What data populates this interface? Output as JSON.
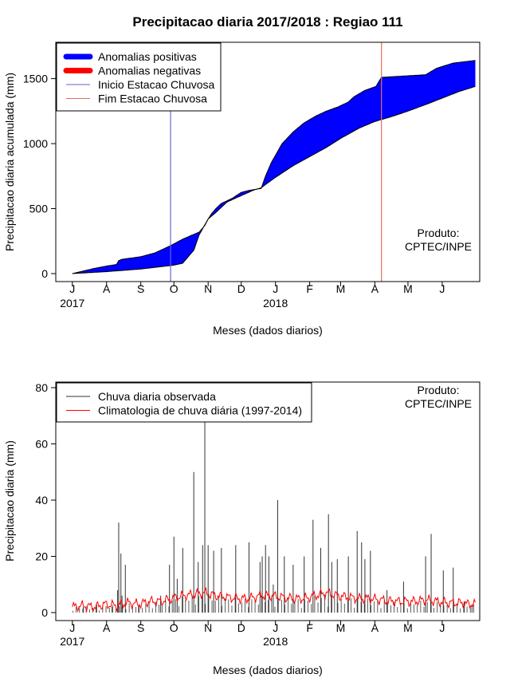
{
  "title": "Precipitacao diaria 2017/2018 : Regiao 111",
  "colors": {
    "positive": "#0000ff",
    "negative": "#ff0000",
    "start_line": "#6666cc",
    "end_line": "#e07060",
    "observed": "#333333",
    "climatology": "#ff0000"
  },
  "chart_data": [
    {
      "type": "area",
      "name": "accumulated",
      "xlabel": "Meses (dados diarios)",
      "ylabel": "Precipitacao diaria acumulada (mm)",
      "ylim": [
        0,
        1700
      ],
      "y_ticks": [
        0,
        500,
        1000,
        1500
      ],
      "x_ticks": [
        "J",
        "A",
        "S",
        "O",
        "N",
        "D",
        "J",
        "F",
        "M",
        "A",
        "M",
        "J"
      ],
      "x_tick_days": [
        0,
        31,
        62,
        92,
        123,
        153,
        184,
        215,
        243,
        274,
        304,
        335
      ],
      "x_range_days": [
        -15,
        369
      ],
      "years": [
        {
          "label": "2017",
          "day": 0
        },
        {
          "label": "2018",
          "day": 184
        }
      ],
      "season_start_day": 89,
      "season_end_day": 280,
      "observed_cum": {
        "days": [
          0,
          20,
          31,
          40,
          42,
          45,
          62,
          75,
          89,
          100,
          115,
          120,
          123,
          126,
          130,
          135,
          145,
          153,
          160,
          171,
          175,
          180,
          190,
          200,
          210,
          220,
          230,
          240,
          250,
          255,
          265,
          275,
          280,
          300,
          320,
          330,
          345,
          365
        ],
        "values": [
          0,
          40,
          58,
          70,
          100,
          110,
          130,
          160,
          215,
          265,
          320,
          370,
          420,
          460,
          500,
          540,
          580,
          625,
          640,
          655,
          750,
          850,
          1000,
          1090,
          1160,
          1210,
          1250,
          1280,
          1320,
          1360,
          1410,
          1440,
          1510,
          1520,
          1530,
          1580,
          1620,
          1640
        ]
      },
      "climatology_cum": {
        "days": [
          0,
          31,
          62,
          92,
          100,
          110,
          115,
          123,
          130,
          140,
          153,
          165,
          171,
          184,
          200,
          215,
          230,
          243,
          260,
          274,
          290,
          304,
          320,
          335,
          350,
          365
        ],
        "values": [
          0,
          15,
          35,
          65,
          80,
          180,
          300,
          420,
          470,
          550,
          600,
          645,
          660,
          740,
          830,
          900,
          970,
          1040,
          1120,
          1170,
          1210,
          1250,
          1300,
          1350,
          1400,
          1440
        ]
      },
      "legend": [
        {
          "label": "Anomalias positivas",
          "kind": "thick",
          "color_key": "positive"
        },
        {
          "label": "Anomalias negativas",
          "kind": "thick",
          "color_key": "negative"
        },
        {
          "label": "Inicio Estacao Chuvosa",
          "kind": "line",
          "color_key": "start_line"
        },
        {
          "label": "Fim Estacao Chuvosa",
          "kind": "line",
          "color_key": "end_line"
        }
      ],
      "annotation": [
        "Produto:",
        "CPTEC/INPE"
      ]
    },
    {
      "type": "bar",
      "name": "daily",
      "xlabel": "Meses (dados diarios)",
      "ylabel": "Precipitacao diaria (mm)",
      "ylim": [
        0,
        80
      ],
      "y_ticks": [
        0,
        20,
        40,
        60,
        80
      ],
      "x_ticks": [
        "J",
        "A",
        "S",
        "O",
        "N",
        "D",
        "J",
        "F",
        "M",
        "A",
        "M",
        "J"
      ],
      "x_tick_days": [
        0,
        31,
        62,
        92,
        123,
        153,
        184,
        215,
        243,
        274,
        304,
        335
      ],
      "x_range_days": [
        -15,
        369
      ],
      "years": [
        {
          "label": "2017",
          "day": 0
        },
        {
          "label": "2018",
          "day": 184
        }
      ],
      "observed_spikes": {
        "days": [
          10,
          22,
          36,
          41,
          42,
          44,
          45,
          48,
          60,
          80,
          88,
          92,
          95,
          100,
          110,
          114,
          118,
          120,
          123,
          128,
          135,
          148,
          160,
          170,
          172,
          175,
          178,
          182,
          186,
          192,
          200,
          210,
          218,
          225,
          232,
          235,
          240,
          250,
          258,
          262,
          265,
          270,
          285,
          300,
          320,
          325,
          336,
          345,
          355,
          362
        ],
        "values": [
          2,
          3,
          2,
          8,
          32,
          21,
          6,
          17,
          2,
          6,
          17,
          27,
          12,
          23,
          50,
          18,
          24,
          68,
          24,
          22,
          23,
          24,
          25,
          18,
          20,
          24,
          20,
          10,
          40,
          20,
          17,
          20,
          33,
          23,
          35,
          18,
          19,
          20,
          29,
          25,
          19,
          22,
          8,
          11,
          20,
          28,
          15,
          16,
          4,
          3
        ]
      },
      "climatology": {
        "days": [
          0,
          10,
          20,
          30,
          40,
          50,
          60,
          70,
          80,
          90,
          100,
          110,
          120,
          130,
          140,
          150,
          160,
          170,
          180,
          190,
          200,
          210,
          220,
          230,
          240,
          250,
          260,
          270,
          280,
          290,
          300,
          310,
          320,
          330,
          340,
          350,
          360,
          365
        ],
        "values": [
          2,
          2.5,
          2,
          3,
          2.5,
          3.5,
          3,
          4,
          4,
          5,
          6,
          6.5,
          7,
          6,
          5.5,
          5,
          5,
          6,
          6,
          5.5,
          5,
          5,
          6,
          7,
          6,
          5.5,
          5,
          5,
          4.5,
          4,
          4,
          4,
          4.5,
          4,
          3.5,
          3.5,
          3,
          3
        ]
      },
      "legend": [
        {
          "label": "Chuva diaria observada",
          "kind": "line",
          "color_key": "observed"
        },
        {
          "label": "Climatologia de chuva diária (1997-2014)",
          "kind": "line",
          "color_key": "climatology"
        }
      ],
      "annotation": [
        "Produto:",
        "CPTEC/INPE"
      ]
    }
  ]
}
